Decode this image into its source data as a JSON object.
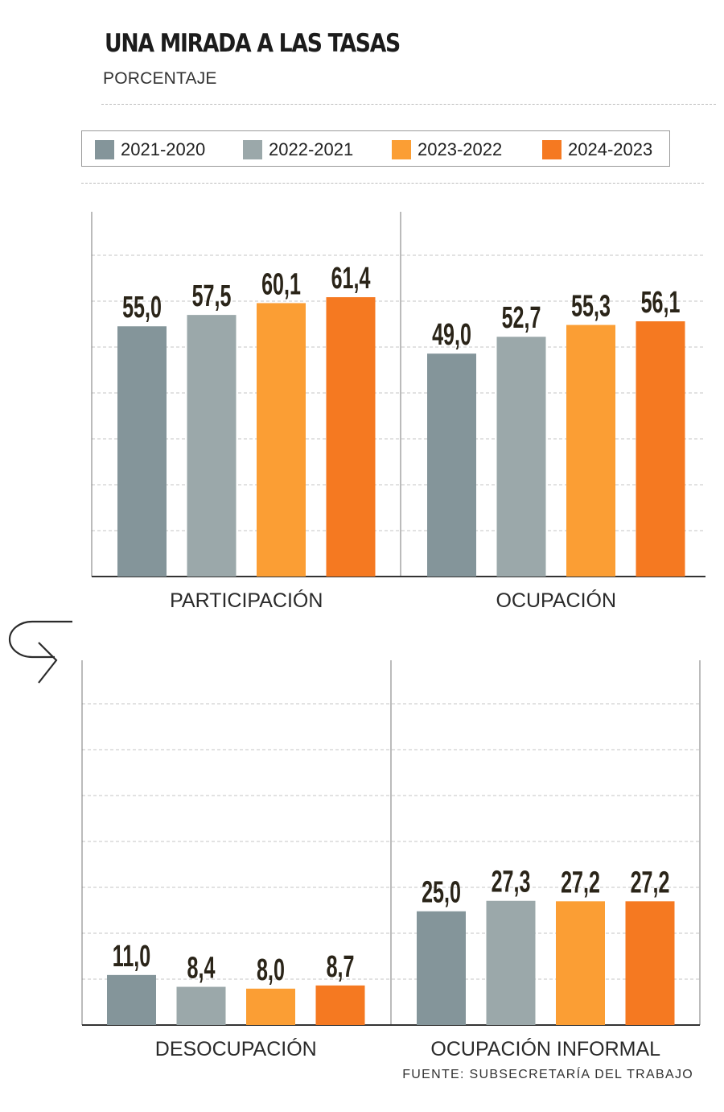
{
  "header": {
    "title": "UNA MIRADA A LAS TASAS",
    "subtitle": "PORCENTAJE"
  },
  "source": "FUENTE: SUBSECRETARÍA DEL TRABAJO",
  "colors": {
    "2021-2020": "#84959a",
    "2022-2021": "#9ba8aa",
    "2023-2022": "#fb9e34",
    "2024-2023": "#f57921",
    "label": "#2a2418",
    "grid": "#c4c4c4",
    "axis": "#333333"
  },
  "chart_data": {
    "type": "bar",
    "series_names": [
      "2021-2020",
      "2022-2021",
      "2023-2022",
      "2024-2023"
    ],
    "legend_position": "top",
    "grid": true,
    "groups": [
      {
        "label": "PARTICIPACIÓN",
        "panel": "top",
        "values": [
          55.0,
          57.5,
          60.1,
          61.4
        ],
        "display": [
          "55,0",
          "57,5",
          "60,1",
          "61,4"
        ]
      },
      {
        "label": "OCUPACIÓN",
        "panel": "top",
        "values": [
          49.0,
          52.7,
          55.3,
          56.1
        ],
        "display": [
          "49,0",
          "52,7",
          "55,3",
          "56,1"
        ]
      },
      {
        "label": "DESOCUPACIÓN",
        "panel": "bottom",
        "values": [
          11.0,
          8.4,
          8.0,
          8.7
        ],
        "display": [
          "11,0",
          "8,4",
          "8,0",
          "8,7"
        ]
      },
      {
        "label": "OCUPACIÓN INFORMAL",
        "panel": "bottom",
        "values": [
          25.0,
          27.3,
          27.2,
          27.2
        ],
        "display": [
          "25,0",
          "27,3",
          "27,2",
          "27,2"
        ]
      }
    ],
    "ylim": [
      0,
      80
    ]
  }
}
